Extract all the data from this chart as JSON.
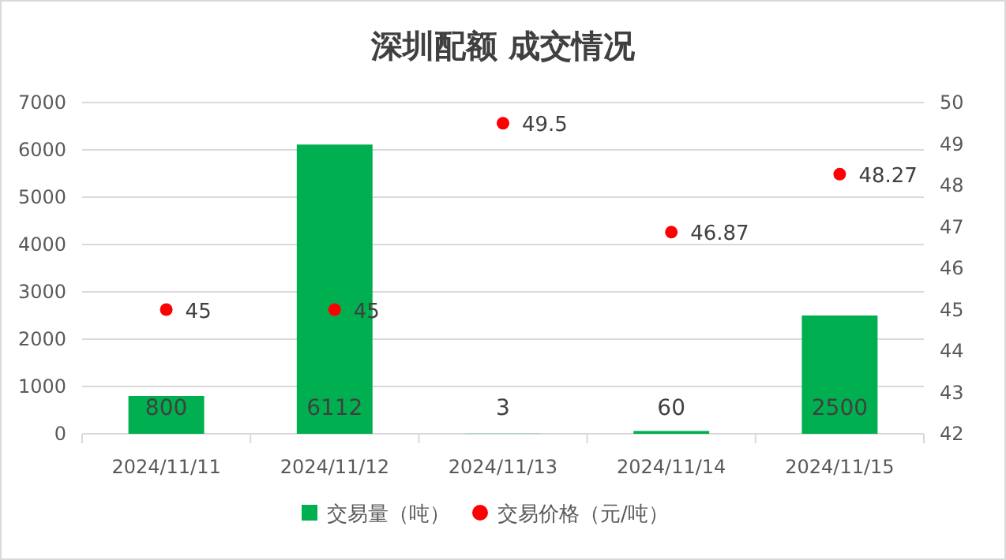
{
  "chart_data": {
    "type": "bar",
    "title": "深圳配额 成交情况",
    "categories": [
      "2024/11/11",
      "2024/11/12",
      "2024/11/13",
      "2024/11/14",
      "2024/11/15"
    ],
    "series": [
      {
        "name": "交易量（吨）",
        "color": "#00b050",
        "values": [
          800,
          6112,
          3,
          60,
          2500
        ]
      },
      {
        "name": "交易价格（元/吨）",
        "type": "scatter",
        "axis": "y2",
        "color": "#ff0000",
        "values": [
          45,
          45,
          49.5,
          46.87,
          48.27
        ]
      }
    ],
    "ylim": [
      0,
      7000
    ],
    "yticks": [
      0,
      1000,
      2000,
      3000,
      4000,
      5000,
      6000,
      7000
    ],
    "y2lim": [
      42,
      50
    ],
    "y2ticks": [
      42,
      43,
      44,
      45,
      46,
      47,
      48,
      49,
      50
    ],
    "grid": "y",
    "legend": "bottom",
    "marker": "circle",
    "data_labels": true
  }
}
